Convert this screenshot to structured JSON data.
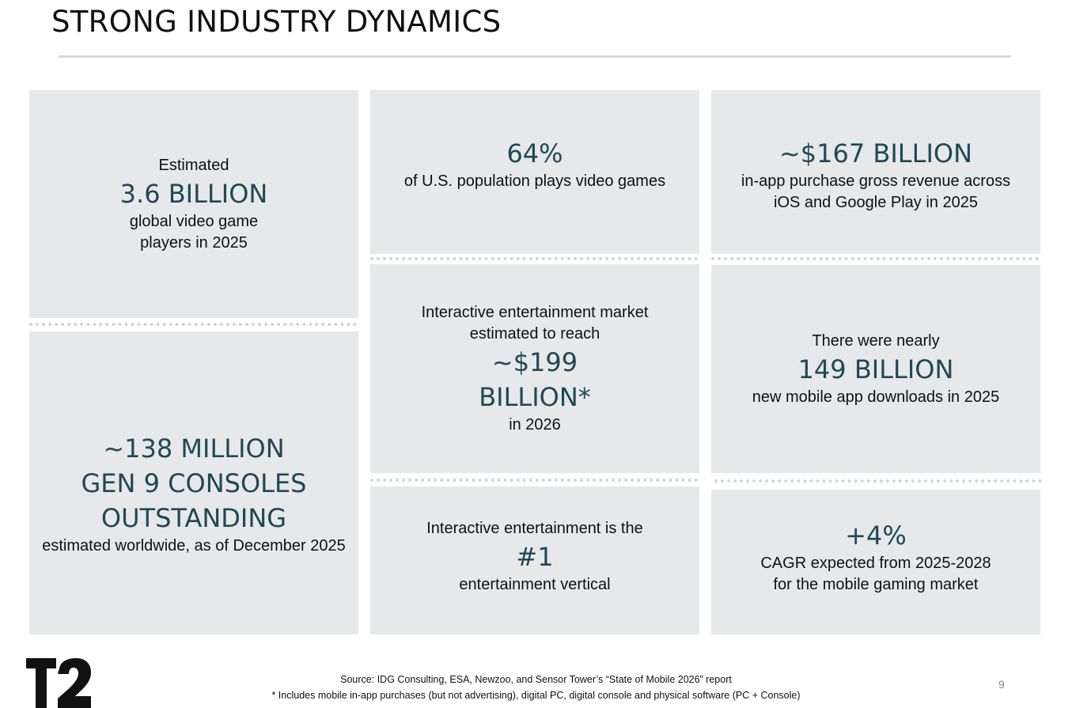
{
  "title": "STRONG INDUSTRY DYNAMICS",
  "cards": {
    "players": {
      "pre": "Estimated",
      "big": "3.6 BILLION",
      "post1": "global video game",
      "post2": "players in 2025"
    },
    "consoles": {
      "big1": "~138 MILLION",
      "big2": "GEN 9 CONSOLES",
      "big3": "OUTSTANDING",
      "post": "estimated worldwide, as of December 2025"
    },
    "population": {
      "big": "64%",
      "post": "of U.S. population plays video games"
    },
    "market": {
      "pre1": "Interactive entertainment market",
      "pre2": "estimated to reach",
      "big1": "~$199",
      "big2": "BILLION*",
      "post": "in 2026"
    },
    "vertical": {
      "pre": "Interactive entertainment is the",
      "big": "#1",
      "post": "entertainment vertical"
    },
    "inapp": {
      "big": "~$167 BILLION",
      "post1": "in-app purchase gross revenue across",
      "post2": "iOS and Google Play in 2025"
    },
    "downloads": {
      "pre": "There were nearly",
      "big": "149 BILLION",
      "post": "new mobile app downloads in 2025"
    },
    "cagr": {
      "big": "+4%",
      "post1": "CAGR expected from 2025-2028",
      "post2": "for the mobile gaming market"
    }
  },
  "footer": {
    "source": "Source:  IDG Consulting, ESA, Newzoo, and Sensor Tower’s “State of Mobile 2026” report",
    "note": "*  Includes mobile in-app purchases (but not advertising), digital PC, digital console and physical software (PC + Console)",
    "page_number": "9",
    "logo_text": "T2"
  },
  "colors": {
    "card_bg": "#e7e8e9",
    "accent_text": "#1f4955"
  }
}
